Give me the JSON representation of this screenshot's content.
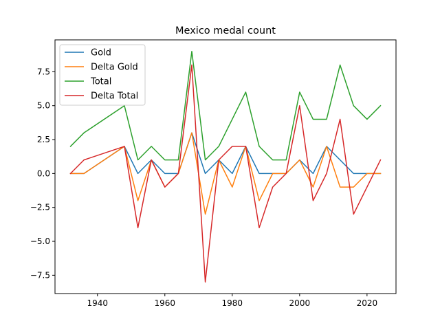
{
  "chart_data": {
    "type": "line",
    "title": "Mexico medal count",
    "xlabel": "",
    "ylabel": "",
    "x": [
      1932,
      1936,
      1948,
      1952,
      1956,
      1960,
      1964,
      1968,
      1972,
      1976,
      1980,
      1984,
      1988,
      1992,
      1996,
      2000,
      2004,
      2008,
      2012,
      2016,
      2020,
      2024
    ],
    "series": [
      {
        "name": "Gold",
        "color": "#1f77b4",
        "values": [
          0,
          0,
          2,
          0,
          1,
          0,
          0,
          3,
          0,
          1,
          0,
          2,
          0,
          0,
          0,
          1,
          0,
          2,
          1,
          0,
          0,
          0
        ]
      },
      {
        "name": "Delta Gold",
        "color": "#ff7f0e",
        "values": [
          0,
          0,
          2,
          -2,
          1,
          -1,
          0,
          3,
          -3,
          1,
          -1,
          2,
          -2,
          0,
          0,
          1,
          -1,
          2,
          -1,
          -1,
          0,
          0
        ]
      },
      {
        "name": "Total",
        "color": "#2ca02c",
        "values": [
          2,
          3,
          5,
          1,
          2,
          1,
          1,
          9,
          1,
          2,
          4,
          6,
          2,
          1,
          1,
          6,
          4,
          4,
          8,
          5,
          4,
          5
        ]
      },
      {
        "name": "Delta Total",
        "color": "#d62728",
        "values": [
          0,
          1,
          2,
          -4,
          1,
          -1,
          0,
          8,
          -8,
          1,
          2,
          2,
          -4,
          -1,
          0,
          5,
          -2,
          0,
          4,
          -3,
          -1,
          1
        ]
      }
    ],
    "xlim": [
      1927.4,
      2028.6
    ],
    "ylim": [
      -8.85,
      9.85
    ],
    "xticks": [
      1940,
      1960,
      1980,
      2000,
      2020
    ],
    "xtick_labels": [
      "1940",
      "1960",
      "1980",
      "2000",
      "2020"
    ],
    "yticks": [
      -7.5,
      -5.0,
      -2.5,
      0.0,
      2.5,
      5.0,
      7.5
    ],
    "ytick_labels": [
      "−7.5",
      "−5.0",
      "−2.5",
      "0.0",
      "2.5",
      "5.0",
      "7.5"
    ],
    "legend_position": "top-left",
    "grid": false
  }
}
